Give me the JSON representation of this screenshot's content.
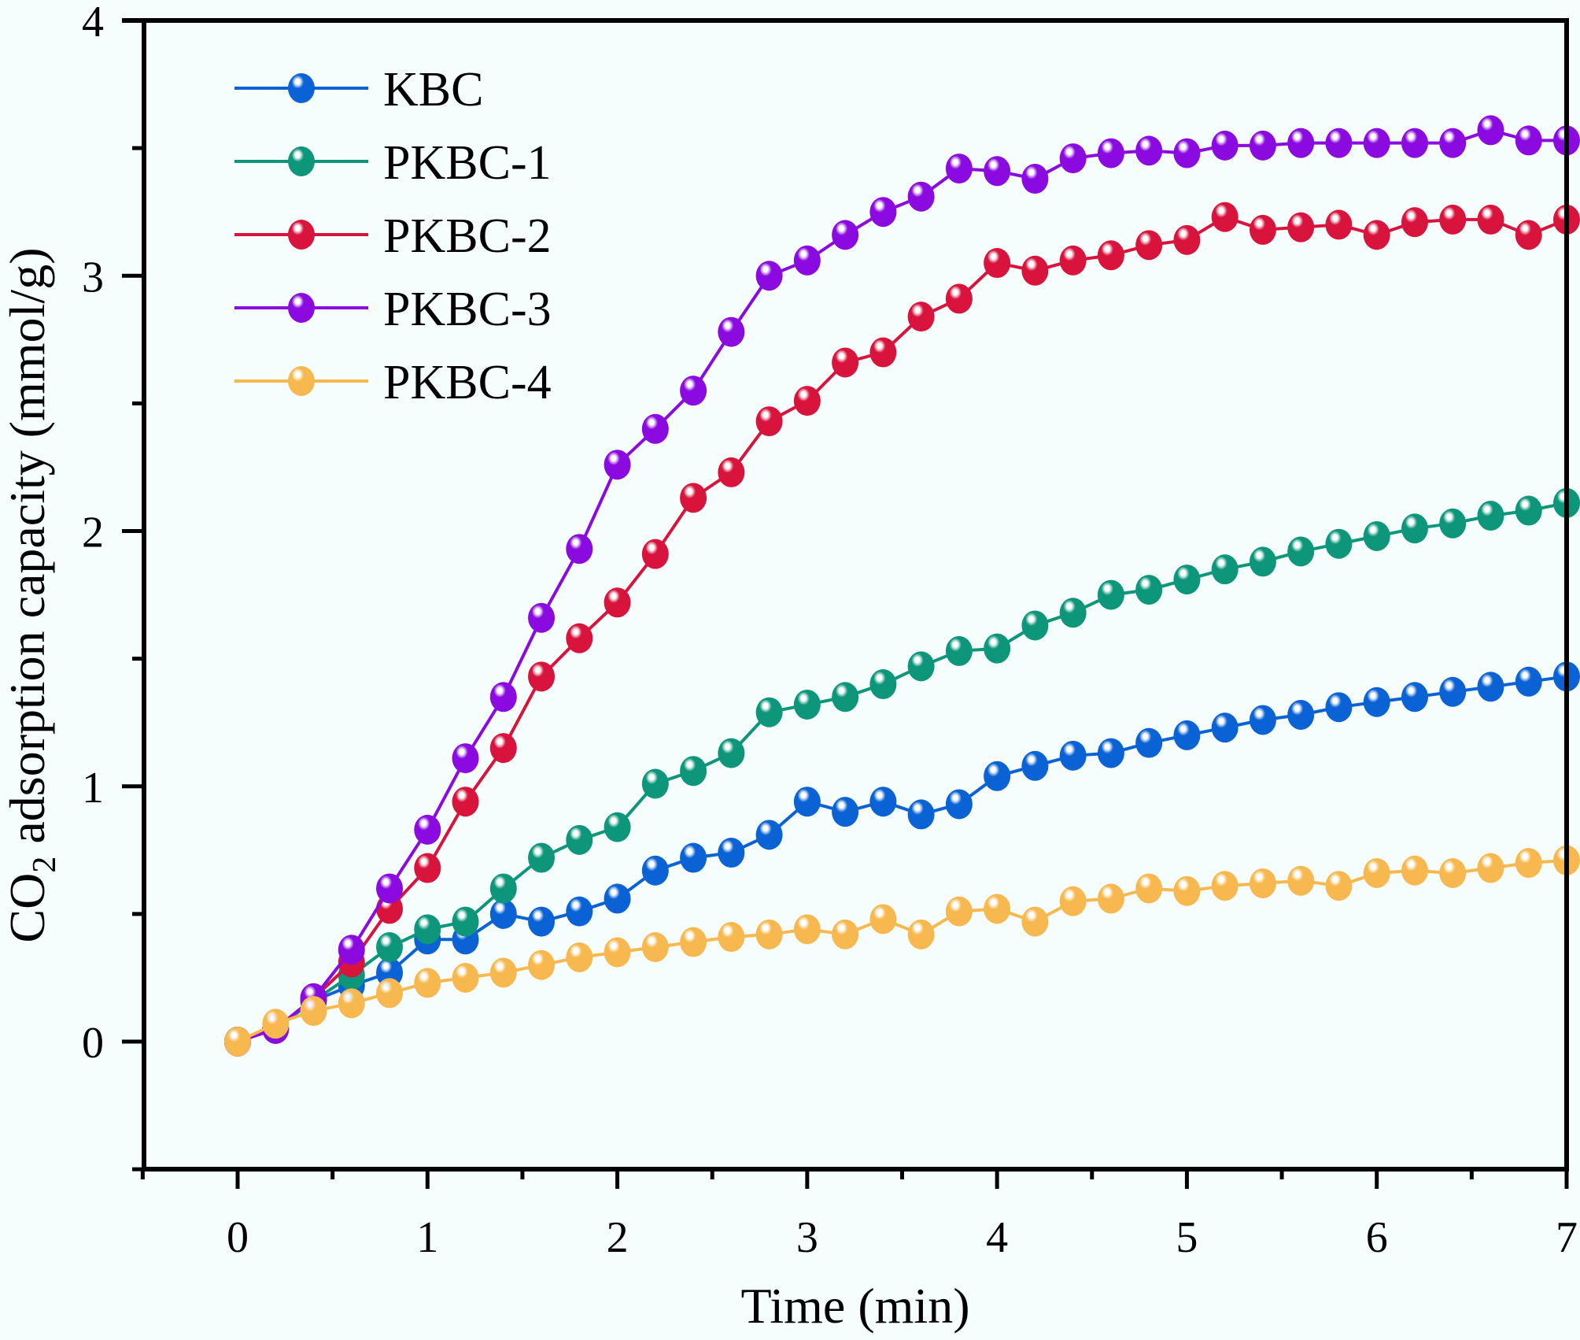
{
  "chart_data": {
    "type": "line",
    "title": "",
    "xlabel": "Time (min)",
    "ylabel_main": "CO",
    "ylabel_sub": "2",
    "ylabel_rest": " adsorption capacity (mmol/g)",
    "ylabel": "CO2 adsorption capacity (mmol/g)",
    "xlim": [
      -0.5,
      7
    ],
    "ylim": [
      -0.5,
      4
    ],
    "xticks": [
      0,
      1,
      2,
      3,
      4,
      5,
      6,
      7
    ],
    "xtick_labels": [
      "0",
      "1",
      "2",
      "3",
      "4",
      "5",
      "6",
      "7"
    ],
    "yticks": [
      0,
      1,
      2,
      3,
      4
    ],
    "ytick_labels": [
      "0",
      "1",
      "2",
      "3",
      "4"
    ],
    "grid": false,
    "legend_position": "top-left",
    "x": [
      0,
      0.2,
      0.4,
      0.6,
      0.8,
      1.0,
      1.2,
      1.4,
      1.6,
      1.8,
      2.0,
      2.2,
      2.4,
      2.6,
      2.8,
      3.0,
      3.2,
      3.4,
      3.6,
      3.8,
      4.0,
      4.2,
      4.4,
      4.6,
      4.8,
      5.0,
      5.2,
      5.4,
      5.6,
      5.8,
      6.0,
      6.2,
      6.4,
      6.6,
      6.8,
      7.0
    ],
    "series": [
      {
        "name": "KBC",
        "color": "#0a62d4",
        "values": [
          0,
          0.05,
          0.16,
          0.22,
          0.27,
          0.4,
          0.4,
          0.5,
          0.47,
          0.51,
          0.56,
          0.67,
          0.72,
          0.74,
          0.81,
          0.94,
          0.9,
          0.94,
          0.89,
          0.93,
          1.04,
          1.08,
          1.12,
          1.13,
          1.17,
          1.2,
          1.23,
          1.26,
          1.28,
          1.31,
          1.33,
          1.35,
          1.37,
          1.39,
          1.41,
          1.43
        ]
      },
      {
        "name": "PKBC-1",
        "color": "#0d967a",
        "values": [
          0,
          0.05,
          0.16,
          0.26,
          0.37,
          0.44,
          0.47,
          0.6,
          0.72,
          0.79,
          0.84,
          1.01,
          1.06,
          1.13,
          1.29,
          1.32,
          1.35,
          1.4,
          1.47,
          1.53,
          1.54,
          1.63,
          1.68,
          1.75,
          1.77,
          1.81,
          1.85,
          1.88,
          1.92,
          1.95,
          1.98,
          2.01,
          2.03,
          2.06,
          2.08,
          2.11
        ]
      },
      {
        "name": "PKBC-2",
        "color": "#d8133c",
        "values": [
          0,
          0.05,
          0.17,
          0.31,
          0.52,
          0.68,
          0.94,
          1.15,
          1.43,
          1.58,
          1.72,
          1.91,
          2.13,
          2.23,
          2.43,
          2.51,
          2.66,
          2.7,
          2.84,
          2.91,
          3.05,
          3.02,
          3.06,
          3.08,
          3.12,
          3.14,
          3.23,
          3.18,
          3.19,
          3.2,
          3.16,
          3.21,
          3.22,
          3.22,
          3.16,
          3.22
        ]
      },
      {
        "name": "PKBC-3",
        "color": "#8a0ae0",
        "values": [
          0,
          0.05,
          0.17,
          0.36,
          0.6,
          0.83,
          1.11,
          1.35,
          1.66,
          1.93,
          2.26,
          2.4,
          2.55,
          2.78,
          3.0,
          3.06,
          3.16,
          3.25,
          3.31,
          3.42,
          3.41,
          3.38,
          3.46,
          3.48,
          3.49,
          3.48,
          3.51,
          3.51,
          3.52,
          3.52,
          3.52,
          3.52,
          3.52,
          3.57,
          3.53,
          3.53
        ]
      },
      {
        "name": "PKBC-4",
        "color": "#f7b94f",
        "values": [
          0,
          0.07,
          0.12,
          0.15,
          0.19,
          0.23,
          0.25,
          0.27,
          0.3,
          0.33,
          0.35,
          0.37,
          0.39,
          0.41,
          0.42,
          0.44,
          0.42,
          0.48,
          0.42,
          0.51,
          0.52,
          0.47,
          0.55,
          0.56,
          0.6,
          0.59,
          0.61,
          0.62,
          0.63,
          0.61,
          0.66,
          0.67,
          0.66,
          0.68,
          0.7,
          0.71
        ]
      }
    ]
  }
}
